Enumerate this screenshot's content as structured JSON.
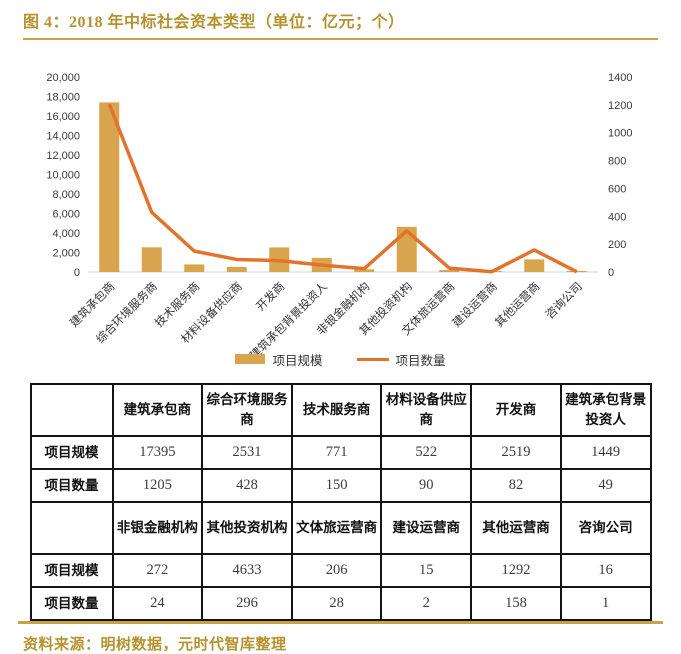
{
  "title": "图 4：2018 年中标社会资本类型（单位：亿元；个）",
  "source": "资料来源：明树数据，元时代智库整理",
  "colors": {
    "gold_text": "#B6922E",
    "gold_rule": "#C8A343",
    "bar": "#D8A44E",
    "line": "#E2732D",
    "axis_text": "#3a3a3a",
    "axis_line": "#D6D6D6"
  },
  "legend": [
    {
      "label": "项目规模",
      "type": "bar"
    },
    {
      "label": "项目数量",
      "type": "line"
    }
  ],
  "chart_data": {
    "type": "bar",
    "subtype": "bar+line combo, dual axis",
    "title": "2018 年中标社会资本类型（单位：亿元；个）",
    "categories": [
      "建筑承包商",
      "综合环境服务商",
      "技术服务商",
      "材料设备供应商",
      "开发商",
      "建筑承包背景投资人",
      "非银金融机构",
      "其他投资机构",
      "文体旅运营商",
      "建设运营商",
      "其他运营商",
      "咨询公司"
    ],
    "series": [
      {
        "name": "项目规模",
        "chart_type": "bar",
        "axis": "left",
        "values": [
          17395,
          2531,
          771,
          522,
          2519,
          1449,
          272,
          4633,
          206,
          15,
          1292,
          16
        ]
      },
      {
        "name": "项目数量",
        "chart_type": "line",
        "axis": "right",
        "values": [
          1205,
          428,
          150,
          90,
          82,
          49,
          24,
          296,
          28,
          2,
          158,
          1
        ]
      }
    ],
    "left_axis": {
      "min": 0,
      "max": 20000,
      "step": 2000,
      "tick_format": "thousands-comma"
    },
    "right_axis": {
      "min": 0,
      "max": 1400,
      "step": 200,
      "tick_format": "plain"
    },
    "grid": false,
    "legend_position": "bottom",
    "x_label_rotation": -45
  },
  "table": {
    "row_labels": [
      "项目规模",
      "项目数量"
    ],
    "sections": [
      {
        "columns": [
          "建筑承包商",
          "综合环境服务商",
          "技术服务商",
          "材料设备供应商",
          "开发商",
          "建筑承包背景投资人"
        ],
        "rows": [
          [
            "17395",
            "2531",
            "771",
            "522",
            "2519",
            "1449"
          ],
          [
            "1205",
            "428",
            "150",
            "90",
            "82",
            "49"
          ]
        ]
      },
      {
        "columns": [
          "非银金融机构",
          "其他投资机构",
          "文体旅运营商",
          "建设运营商",
          "其他运营商",
          "咨询公司"
        ],
        "rows": [
          [
            "272",
            "4633",
            "206",
            "15",
            "1292",
            "16"
          ],
          [
            "24",
            "296",
            "28",
            "2",
            "158",
            "1"
          ]
        ]
      }
    ]
  }
}
